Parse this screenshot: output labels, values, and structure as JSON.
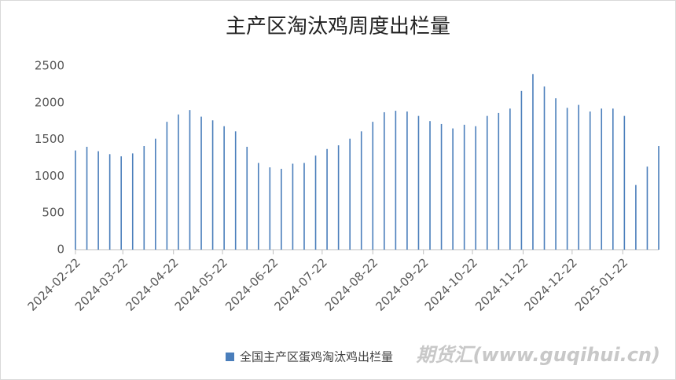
{
  "chart_data": {
    "type": "bar",
    "title": "主产区淘汰鸡周度出栏量",
    "x": [
      "2024-02-22",
      "2024-02-29",
      "2024-03-07",
      "2024-03-14",
      "2024-03-21",
      "2024-03-28",
      "2024-04-04",
      "2024-04-11",
      "2024-04-18",
      "2024-04-25",
      "2024-05-02",
      "2024-05-09",
      "2024-05-16",
      "2024-05-23",
      "2024-05-30",
      "2024-06-06",
      "2024-06-13",
      "2024-06-20",
      "2024-06-27",
      "2024-07-04",
      "2024-07-11",
      "2024-07-18",
      "2024-07-25",
      "2024-08-01",
      "2024-08-08",
      "2024-08-15",
      "2024-08-22",
      "2024-08-29",
      "2024-09-05",
      "2024-09-12",
      "2024-09-19",
      "2024-09-26",
      "2024-10-03",
      "2024-10-10",
      "2024-10-17",
      "2024-10-24",
      "2024-10-31",
      "2024-11-07",
      "2024-11-14",
      "2024-11-21",
      "2024-11-28",
      "2024-12-05",
      "2024-12-12",
      "2024-12-19",
      "2024-12-26",
      "2025-01-02",
      "2025-01-09",
      "2025-01-16",
      "2025-01-23",
      "2025-01-30",
      "2025-02-06",
      "2025-02-13"
    ],
    "series": [
      {
        "name": "全国主产区蛋鸡淘汰鸡出栏量",
        "color": "#4a7ebb",
        "values": [
          1350,
          1400,
          1340,
          1300,
          1270,
          1310,
          1410,
          1510,
          1740,
          1840,
          1900,
          1810,
          1760,
          1680,
          1610,
          1400,
          1180,
          1120,
          1100,
          1170,
          1180,
          1280,
          1370,
          1420,
          1510,
          1610,
          1740,
          1870,
          1890,
          1880,
          1820,
          1750,
          1710,
          1650,
          1700,
          1680,
          1820,
          1860,
          1920,
          2160,
          2390,
          2220,
          2060,
          1930,
          1970,
          1880,
          1920,
          1920,
          1820,
          880,
          1130,
          1410
        ]
      }
    ],
    "xlim": [
      "2024-02-22",
      "2025-02-13"
    ],
    "xticks": [
      "2024-02-22",
      "2024-03-22",
      "2024-04-22",
      "2024-05-22",
      "2024-06-22",
      "2024-07-22",
      "2024-08-22",
      "2024-09-22",
      "2024-10-22",
      "2024-11-22",
      "2024-12-22",
      "2025-01-22"
    ],
    "ylim": [
      0,
      2500
    ],
    "yticks": [
      0,
      500,
      1000,
      1500,
      2000,
      2500
    ],
    "grid": false,
    "legend": "bottom",
    "watermark": "期货汇(www.guqihui.cn)"
  }
}
